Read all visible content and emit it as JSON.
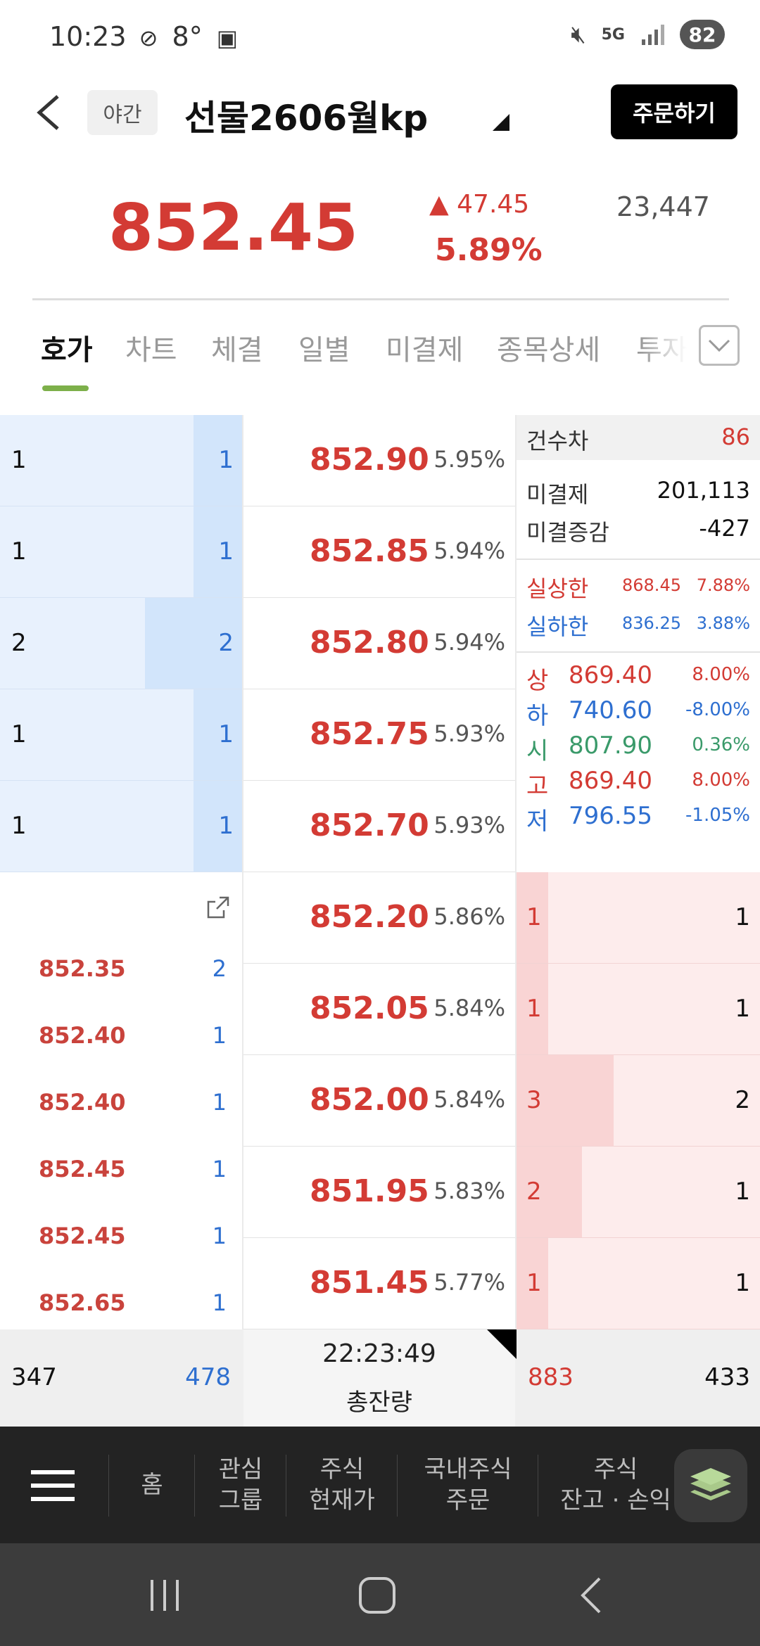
{
  "status": {
    "time": "10:23",
    "temp": "8°",
    "battery": "82",
    "network": "5G"
  },
  "header": {
    "badge": "야간",
    "title": "선물2606월kp",
    "order_label": "주문하기"
  },
  "summary": {
    "price": "852.45",
    "change": "▲ 47.45",
    "change_pct": "5.89%",
    "volume": "23,447"
  },
  "tabs": [
    "호가",
    "차트",
    "체결",
    "일별",
    "미결제",
    "종목상세",
    "투자"
  ],
  "asks": [
    {
      "count": "1",
      "qty": "1",
      "price": "852.90",
      "pct": "5.95%",
      "bar": 0.2
    },
    {
      "count": "1",
      "qty": "1",
      "price": "852.85",
      "pct": "5.94%",
      "bar": 0.2
    },
    {
      "count": "2",
      "qty": "2",
      "price": "852.80",
      "pct": "5.94%",
      "bar": 0.4
    },
    {
      "count": "1",
      "qty": "1",
      "price": "852.75",
      "pct": "5.93%",
      "bar": 0.2
    },
    {
      "count": "1",
      "qty": "1",
      "price": "852.70",
      "pct": "5.93%",
      "bar": 0.2
    }
  ],
  "bids": [
    {
      "price": "852.20",
      "pct": "5.86%",
      "count": "1",
      "qty": "1",
      "bar": 0.13
    },
    {
      "price": "852.05",
      "pct": "5.84%",
      "count": "1",
      "qty": "1",
      "bar": 0.13
    },
    {
      "price": "852.00",
      "pct": "5.84%",
      "count": "3",
      "qty": "2",
      "bar": 0.4
    },
    {
      "price": "851.95",
      "pct": "5.83%",
      "count": "2",
      "qty": "1",
      "bar": 0.27
    },
    {
      "price": "851.45",
      "pct": "5.77%",
      "count": "1",
      "qty": "1",
      "bar": 0.13
    }
  ],
  "info": {
    "count_diff_label": "건수차",
    "count_diff": "86",
    "oi_label": "미결제",
    "oi": "201,113",
    "oi_chg_label": "미결증감",
    "oi_chg": "-427",
    "upper_label": "실상한",
    "upper_price": "868.45",
    "upper_pct": "7.88%",
    "lower_label": "실하한",
    "lower_price": "836.25",
    "lower_pct": "3.88%",
    "stats": [
      {
        "label": "상",
        "price": "869.40",
        "pct": "8.00%",
        "color": "red"
      },
      {
        "label": "하",
        "price": "740.60",
        "pct": "-8.00%",
        "color": "blue"
      },
      {
        "label": "시",
        "price": "807.90",
        "pct": "0.36%",
        "color": "green"
      },
      {
        "label": "고",
        "price": "869.40",
        "pct": "8.00%",
        "color": "red"
      },
      {
        "label": "저",
        "price": "796.55",
        "pct": "-1.05%",
        "color": "blue"
      }
    ]
  },
  "trades": [
    {
      "price": "852.35",
      "qty": "2"
    },
    {
      "price": "852.40",
      "qty": "1"
    },
    {
      "price": "852.40",
      "qty": "1"
    },
    {
      "price": "852.45",
      "qty": "1"
    },
    {
      "price": "852.45",
      "qty": "1"
    },
    {
      "price": "852.65",
      "qty": "1"
    }
  ],
  "totals": {
    "ask_count": "347",
    "ask_qty": "478",
    "time": "22:23:49",
    "label": "총잔량",
    "bid_count": "883",
    "bid_qty": "433"
  },
  "bottom_nav": [
    {
      "label": "홈"
    },
    {
      "label": "관심\n그룹"
    },
    {
      "label": "주식\n현재가"
    },
    {
      "label": "국내주식\n주문"
    },
    {
      "label": "주식\n잔고 · 손익"
    }
  ],
  "colors": {
    "up": "#d33b34",
    "down": "#2e6fd0",
    "accent": "#7db04a"
  }
}
